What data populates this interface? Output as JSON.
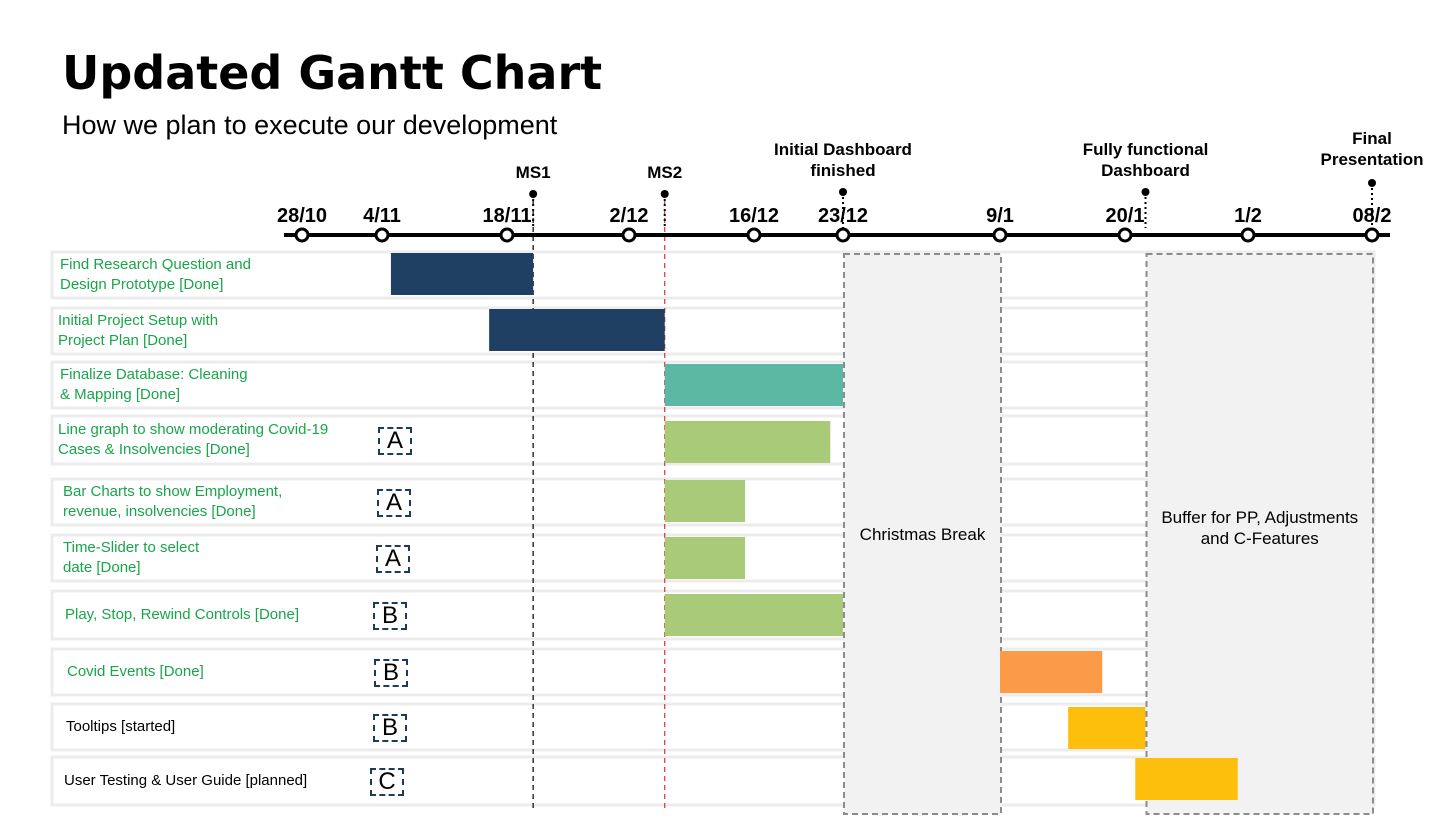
{
  "title": "Updated Gantt Chart",
  "subtitle": "How we plan to execute our development",
  "chart_data": {
    "type": "gantt",
    "x_axis": {
      "ticks": [
        {
          "label": "28/10",
          "date": "2020-10-28"
        },
        {
          "label": "4/11",
          "date": "2020-11-04"
        },
        {
          "label": "18/11",
          "date": "2020-11-18"
        },
        {
          "label": "2/12",
          "date": "2020-12-02"
        },
        {
          "label": "16/12",
          "date": "2020-12-16"
        },
        {
          "label": "23/12",
          "date": "2020-12-23"
        },
        {
          "label": "9/1",
          "date": "2021-01-09"
        },
        {
          "label": "20/1",
          "date": "2021-01-20"
        },
        {
          "label": "1/2",
          "date": "2021-02-01"
        },
        {
          "label": "08/2",
          "date": "2021-02-08"
        }
      ]
    },
    "milestones": [
      {
        "label": "MS1",
        "date": "2020-11-21",
        "line": "black-dashed"
      },
      {
        "label": "MS2",
        "date": "2020-12-06",
        "line": "red-dashed"
      },
      {
        "label": "Initial Dashboard finished",
        "date": "2020-12-23"
      },
      {
        "label": "Fully functional Dashboard",
        "date": "2021-01-22"
      },
      {
        "label": "Final Presentation",
        "date": "2021-02-08"
      }
    ],
    "regions": [
      {
        "label": "Christmas Break",
        "start": "2020-12-23",
        "end": "2021-01-09"
      },
      {
        "label": "Buffer for PP, Adjustments and C-Features",
        "start": "2021-01-22",
        "end": "2021-02-08"
      }
    ],
    "tasks": [
      {
        "name": "Find Research Question and Design Prototype [Done]",
        "status": "done",
        "badge": "",
        "start": "2020-11-05",
        "end": "2020-11-21",
        "color": "#1f3f63"
      },
      {
        "name": "Initial Project Setup with Project Plan [Done]",
        "status": "done",
        "badge": "",
        "start": "2020-11-16",
        "end": "2020-12-06",
        "color": "#1f3f63"
      },
      {
        "name": "Finalize Database: Cleaning & Mapping [Done]",
        "status": "done",
        "badge": "",
        "start": "2020-12-06",
        "end": "2020-12-23",
        "color": "#5cb8a2"
      },
      {
        "name": "Line graph to show moderating Covid-19 Cases & Insolvencies [Done]",
        "status": "done",
        "badge": "A",
        "start": "2020-12-06",
        "end": "2020-12-22",
        "color": "#a9cb79"
      },
      {
        "name": "Bar Charts to show Employment, revenue, insolvencies [Done]",
        "status": "done",
        "badge": "A",
        "start": "2020-12-06",
        "end": "2020-12-15",
        "color": "#a9cb79"
      },
      {
        "name": "Time-Slider to select date [Done]",
        "status": "done",
        "badge": "A",
        "start": "2020-12-06",
        "end": "2020-12-15",
        "color": "#a9cb79"
      },
      {
        "name": "Play, Stop, Rewind Controls [Done]",
        "status": "done",
        "badge": "B",
        "start": "2020-12-06",
        "end": "2020-12-23",
        "color": "#a9cb79"
      },
      {
        "name": "Covid Events [Done]",
        "status": "done",
        "badge": "B",
        "start": "2021-01-09",
        "end": "2021-01-18",
        "color": "#fb9b47"
      },
      {
        "name": "Tooltips [started]",
        "status": "started",
        "badge": "B",
        "start": "2021-01-15",
        "end": "2021-01-22",
        "color": "#fdbf0b"
      },
      {
        "name": "User Testing & User Guide [planned]",
        "status": "planned",
        "badge": "C",
        "start": "2021-01-21",
        "end": "2021-01-31",
        "color": "#fdbf0b"
      }
    ]
  },
  "colors": {
    "done_text": "#19a54a",
    "other_text": "#000000",
    "axis": "#000000",
    "ms2_line": "#e03030",
    "region_fill": "#f2f2f2"
  },
  "task_display": [
    [
      "Find Research Question and",
      "Design Prototype [Done]"
    ],
    [
      "Initial Project Setup with",
      "Project Plan [Done]"
    ],
    [
      "Finalize Database: Cleaning",
      "& Mapping [Done]"
    ],
    [
      "Line graph to show moderating Covid-19",
      "Cases & Insolvencies [Done]"
    ],
    [
      "Bar Charts to show Employment,",
      "revenue, insolvencies [Done]"
    ],
    [
      "Time-Slider to select",
      "date [Done]"
    ],
    [
      "Play, Stop, Rewind Controls [Done]"
    ],
    [
      "Covid Events [Done]"
    ],
    [
      "Tooltips [started]"
    ],
    [
      "User Testing & User Guide [planned]"
    ]
  ],
  "milestone_display": [
    [
      "MS1"
    ],
    [
      "MS2"
    ],
    [
      "Initial Dashboard",
      "finished"
    ],
    [
      "Fully functional",
      "Dashboard"
    ],
    [
      "Final",
      "Presentation"
    ]
  ],
  "region_display": [
    [
      "Christmas Break"
    ],
    [
      "Buffer for PP, Adjustments",
      "and C-Features"
    ]
  ]
}
